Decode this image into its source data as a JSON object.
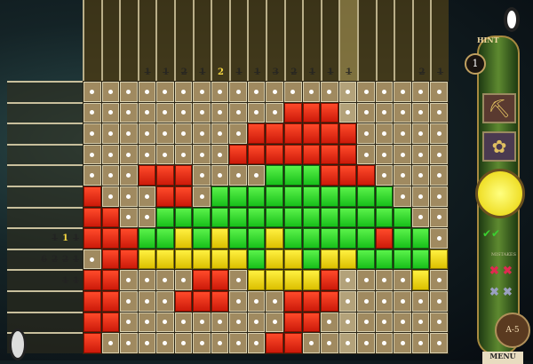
{
  "column_clues": [
    {
      "value": "",
      "crossed": false
    },
    {
      "value": "",
      "crossed": false
    },
    {
      "value": "",
      "crossed": false
    },
    {
      "value": "1",
      "crossed": true
    },
    {
      "value": "1",
      "crossed": true
    },
    {
      "value": "2",
      "crossed": true
    },
    {
      "value": "1",
      "crossed": true
    },
    {
      "value": "2",
      "crossed": false
    },
    {
      "value": "1",
      "crossed": true
    },
    {
      "value": "1",
      "crossed": true
    },
    {
      "value": "3",
      "crossed": true
    },
    {
      "value": "2",
      "crossed": true
    },
    {
      "value": "1",
      "crossed": true
    },
    {
      "value": "1",
      "crossed": true
    },
    {
      "value": "1",
      "crossed": true
    },
    {
      "value": "",
      "crossed": false
    },
    {
      "value": "",
      "crossed": false
    },
    {
      "value": "",
      "crossed": false
    },
    {
      "value": "2",
      "crossed": true
    },
    {
      "value": "1",
      "crossed": true
    }
  ],
  "highlighted_column": 14,
  "row_clues": [
    [],
    [],
    [],
    [],
    [],
    [],
    [],
    [
      {
        "value": "1",
        "crossed": true
      },
      {
        "value": "1",
        "crossed": false
      },
      {
        "value": "1",
        "crossed": true
      }
    ],
    [
      {
        "value": "6",
        "crossed": true
      },
      {
        "value": "2",
        "crossed": true
      },
      {
        "value": "2",
        "crossed": true
      },
      {
        "value": "1",
        "crossed": true
      }
    ],
    [
      {
        "value": "1",
        "crossed": true
      },
      {
        "value": "1",
        "crossed": true
      }
    ],
    [],
    [],
    []
  ],
  "grid_colors": {
    "R": "#e8261a",
    "G": "#2ad82a",
    "Y": "#f0e020"
  },
  "grid": [
    "....................",
    "...........RRR......",
    ".........RRRRRR.....",
    "........RRRRRRR.....",
    "...RRR....GGGRRR....",
    "R...RR.GGGGGGGGGG...",
    "RR..GGGGGGGGGGGGGG..",
    "RRRGGYGYGGYGGGGGRGG.",
    ".RRYYYYYYGYYGYYGGGGY",
    "RR....RR.YYYYR....Y.",
    "RR...RRR...RRR......",
    "RR.........RR.......",
    "R.........RR........"
  ],
  "panel": {
    "hint_label": "HINT",
    "hint_count": "1",
    "tools": [
      "pickaxe-icon",
      "flower-icon"
    ],
    "checks": "✔✔",
    "mistakes_label": "MISTAKES",
    "mistakes_used": "✖✖",
    "mistakes_left": "✖✖",
    "level": "A-5",
    "menu_label": "MENU"
  }
}
